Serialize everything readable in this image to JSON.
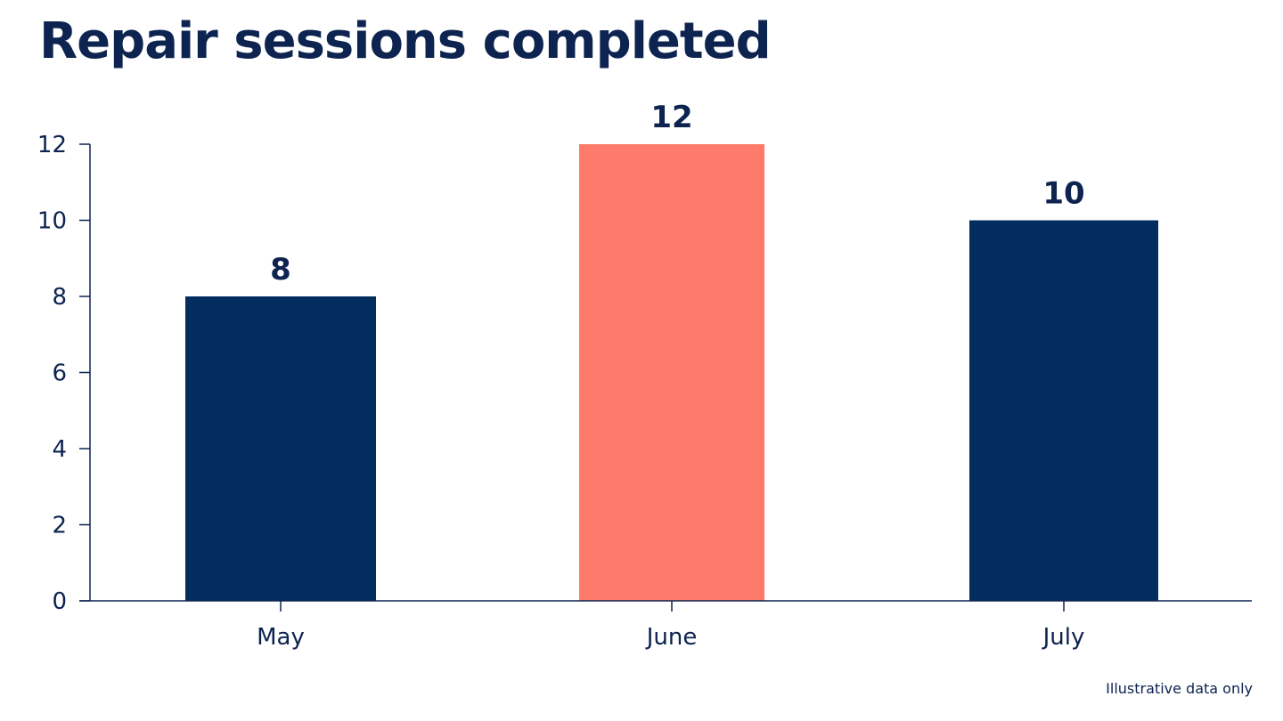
{
  "footnote": "Illustrative data only",
  "chart_data": {
    "type": "bar",
    "title": "Repair sessions completed",
    "categories": [
      "May",
      "June",
      "July"
    ],
    "values": [
      8,
      12,
      10
    ],
    "data_labels": [
      "8",
      "12",
      "10"
    ],
    "xlabel": "",
    "ylabel": "",
    "ylim": [
      0,
      12
    ],
    "yticks": [
      0,
      2,
      4,
      6,
      8,
      10,
      12
    ],
    "grid": false,
    "legend": "none",
    "colors": {
      "default_bar": "#032d5f",
      "highlight_bar": "#fe7a6a",
      "axis": "#0d2350"
    },
    "highlight_index": 1
  }
}
